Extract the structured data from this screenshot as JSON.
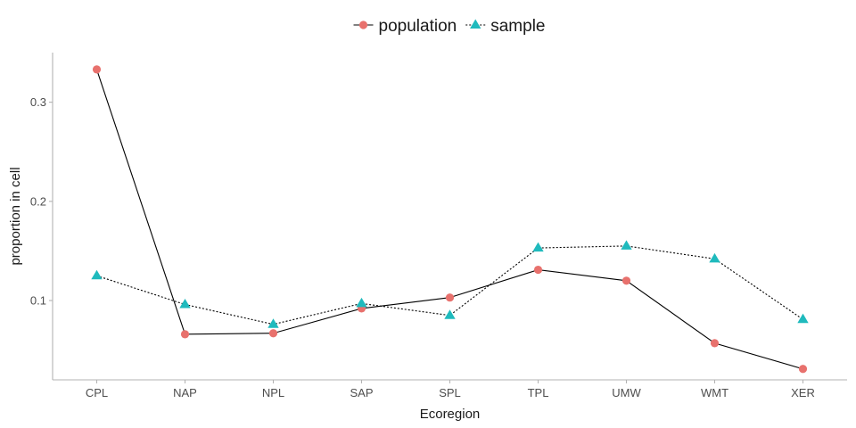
{
  "chart_data": {
    "type": "line",
    "xlabel": "Ecoregion",
    "ylabel": "proportion in cell",
    "categories": [
      "CPL",
      "NAP",
      "NPL",
      "SAP",
      "SPL",
      "TPL",
      "UMW",
      "WMT",
      "XER"
    ],
    "ylim": [
      0.02,
      0.35
    ],
    "yticks": [
      0.1,
      0.2,
      0.3
    ],
    "ytick_labels": [
      "0.1",
      "0.2",
      "0.3"
    ],
    "grid": false,
    "legend_position": "top",
    "series": [
      {
        "name": "population",
        "color": "#E8716D",
        "marker": "circle",
        "line_style": "solid",
        "values": [
          0.333,
          0.066,
          0.067,
          0.092,
          0.103,
          0.131,
          0.12,
          0.057,
          0.031
        ]
      },
      {
        "name": "sample",
        "color": "#1FBABD",
        "marker": "triangle",
        "line_style": "dotted",
        "values": [
          0.125,
          0.096,
          0.076,
          0.097,
          0.085,
          0.153,
          0.155,
          0.142,
          0.081
        ]
      }
    ]
  }
}
